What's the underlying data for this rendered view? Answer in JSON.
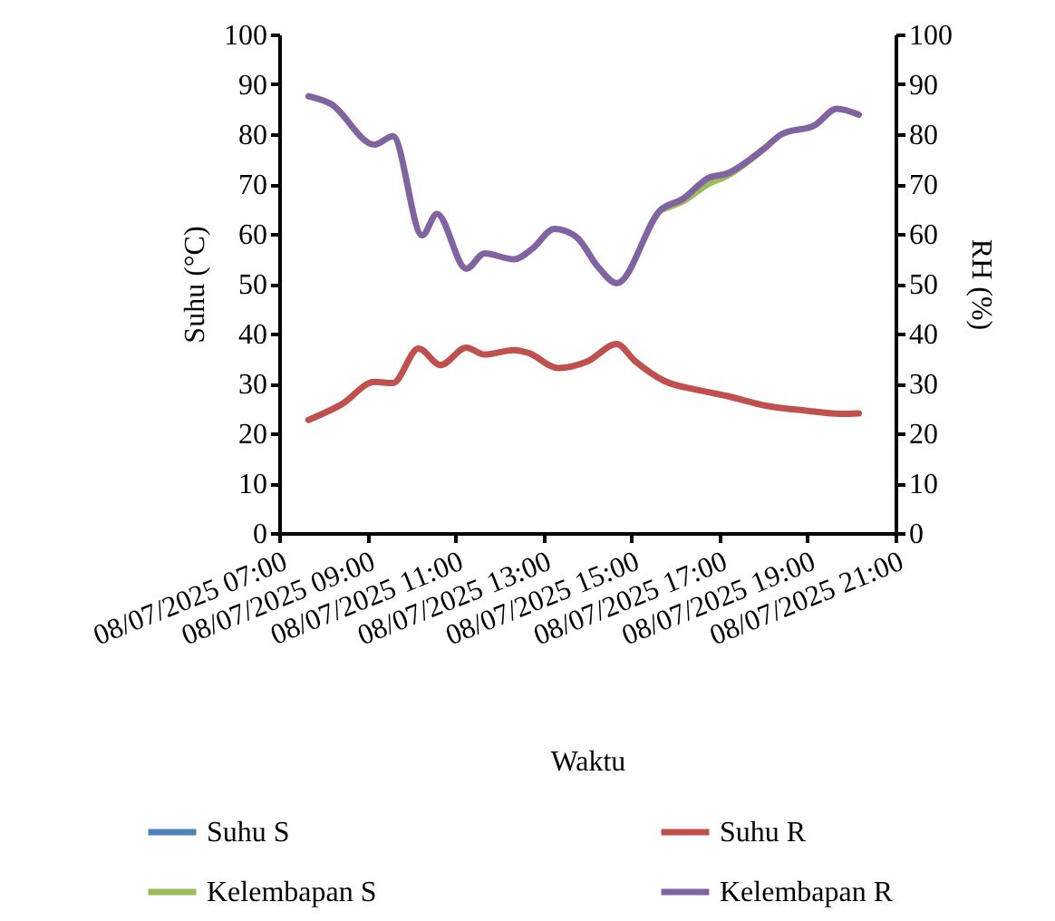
{
  "chart_data": {
    "type": "line",
    "xlabel": "Waktu",
    "ylabel": "Suhu (°C)",
    "y2label": "RH (%)",
    "xlim": [
      "2025-07-08T07:00",
      "2025-07-08T21:00"
    ],
    "xticks": [
      {
        "value": "2025-07-08T07:00",
        "label": "08/07/2025 07:00"
      },
      {
        "value": "2025-07-08T09:00",
        "label": "08/07/2025 09:00"
      },
      {
        "value": "2025-07-08T11:00",
        "label": "08/07/2025 11:00"
      },
      {
        "value": "2025-07-08T13:00",
        "label": "08/07/2025 13:00"
      },
      {
        "value": "2025-07-08T15:00",
        "label": "08/07/2025 15:00"
      },
      {
        "value": "2025-07-08T17:00",
        "label": "08/07/2025 17:00"
      },
      {
        "value": "2025-07-08T19:00",
        "label": "08/07/2025 19:00"
      },
      {
        "value": "2025-07-08T21:00",
        "label": "08/07/2025 21:00"
      }
    ],
    "ylim": [
      0,
      100
    ],
    "yticks": [
      0,
      10,
      20,
      30,
      40,
      50,
      60,
      70,
      80,
      90,
      100
    ],
    "y2lim": [
      0,
      100
    ],
    "y2ticks": [
      0,
      10,
      20,
      30,
      40,
      50,
      60,
      70,
      80,
      90,
      100
    ],
    "legend": "bottom",
    "grid": false,
    "marker": "none",
    "line_style": "solid",
    "series": [
      {
        "name": "Suhu S",
        "color": "#4f81bd"
      },
      {
        "name": "Suhu R",
        "color": "#c0504d",
        "x": [
          "2025-07-08T07:40",
          "2025-07-08T08:25",
          "2025-07-08T09:10",
          "2025-07-08T09:35",
          "2025-07-08T10:10",
          "2025-07-08T10:40",
          "2025-07-08T11:15",
          "2025-07-08T11:40",
          "2025-07-08T12:20",
          "2025-07-08T12:40",
          "2025-07-08T13:20",
          "2025-07-08T14:00",
          "2025-07-08T14:40",
          "2025-07-08T15:05",
          "2025-07-08T15:45",
          "2025-07-08T16:30",
          "2025-07-08T17:10",
          "2025-07-08T18:05",
          "2025-07-08T18:55",
          "2025-07-08T19:45",
          "2025-07-08T20:10"
        ],
        "values": [
          22.7,
          25.8,
          30.3,
          30.1,
          37.0,
          33.7,
          37.2,
          35.8,
          36.7,
          36.1,
          33.1,
          34.4,
          37.9,
          34.5,
          30.5,
          28.7,
          27.5,
          25.5,
          24.6,
          23.9,
          24.0
        ]
      },
      {
        "name": "Kelembapan S",
        "color": "#9bbb59",
        "axis": "y2",
        "x": [
          "2025-07-08T15:40",
          "2025-07-08T16:10",
          "2025-07-08T16:45",
          "2025-07-08T17:10",
          "2025-07-08T18:00"
        ],
        "values": [
          64.8,
          66.5,
          70.0,
          71.6,
          77.0
        ]
      },
      {
        "name": "Kelembapan R",
        "color": "#8064a2",
        "axis": "y2",
        "x": [
          "2025-07-08T07:40",
          "2025-07-08T08:10",
          "2025-07-08T09:10",
          "2025-07-08T09:35",
          "2025-07-08T10:15",
          "2025-07-08T10:35",
          "2025-07-08T11:15",
          "2025-07-08T11:40",
          "2025-07-08T12:20",
          "2025-07-08T12:45",
          "2025-07-08T13:15",
          "2025-07-08T13:45",
          "2025-07-08T14:15",
          "2025-07-08T14:40",
          "2025-07-08T15:40",
          "2025-07-08T16:10",
          "2025-07-08T16:45",
          "2025-07-08T17:10",
          "2025-07-08T18:00",
          "2025-07-08T18:25",
          "2025-07-08T19:10",
          "2025-07-08T19:40",
          "2025-07-08T20:10"
        ],
        "values": [
          87.6,
          86.1,
          77.9,
          79.6,
          59.7,
          64.0,
          53.0,
          56.1,
          54.9,
          57.0,
          61.0,
          59.4,
          53.3,
          50.1,
          64.8,
          67.0,
          71.2,
          72.1,
          77.0,
          80.0,
          81.8,
          85.1,
          83.9
        ]
      }
    ]
  }
}
